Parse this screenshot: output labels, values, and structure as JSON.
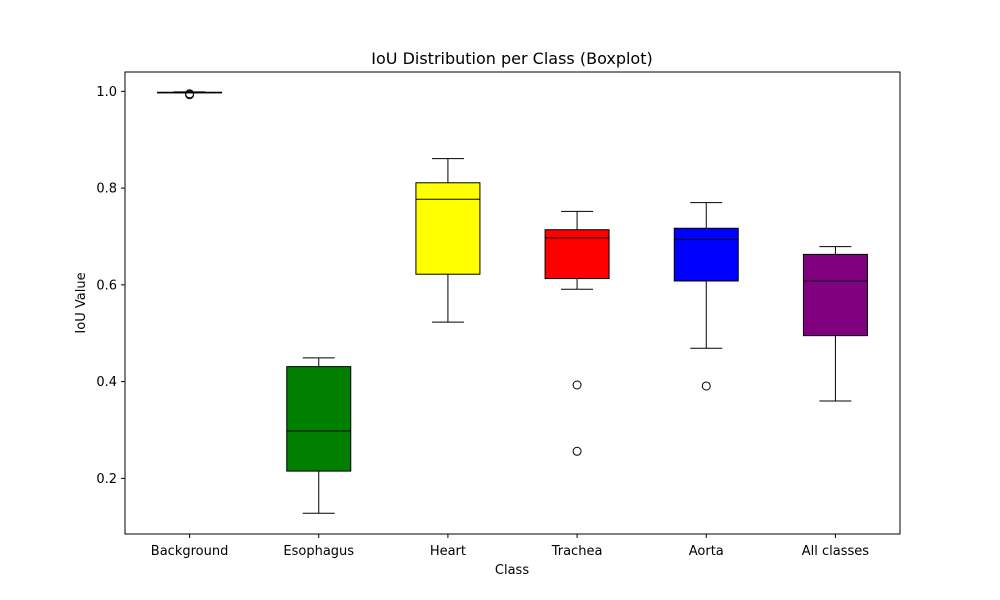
{
  "chart_data": {
    "type": "boxplot",
    "title": "IoU Distribution per Class (Boxplot)",
    "xlabel": "Class",
    "ylabel": "IoU Value",
    "ylim": [
      0.085,
      1.04
    ],
    "yticks": [
      0.2,
      0.4,
      0.6,
      0.8,
      1.0
    ],
    "ytick_labels": [
      "0.2",
      "0.4",
      "0.6",
      "0.8",
      "1.0"
    ],
    "grid": false,
    "legend": "none",
    "boxes": [
      {
        "category": "Background",
        "color": "#ffffff",
        "whisker_low": 0.997,
        "q1": 0.997,
        "median": 0.998,
        "q3": 0.998,
        "whisker_high": 0.999,
        "outliers": [
          0.993,
          0.995
        ]
      },
      {
        "category": "Esophagus",
        "color": "#008000",
        "whisker_low": 0.128,
        "q1": 0.215,
        "median": 0.298,
        "q3": 0.431,
        "whisker_high": 0.449,
        "outliers": []
      },
      {
        "category": "Heart",
        "color": "#ffff00",
        "whisker_low": 0.523,
        "q1": 0.622,
        "median": 0.777,
        "q3": 0.811,
        "whisker_high": 0.861,
        "outliers": []
      },
      {
        "category": "Trachea",
        "color": "#ff0000",
        "whisker_low": 0.591,
        "q1": 0.613,
        "median": 0.697,
        "q3": 0.714,
        "whisker_high": 0.752,
        "outliers": [
          0.393,
          0.256
        ]
      },
      {
        "category": "Aorta",
        "color": "#0000ff",
        "whisker_low": 0.469,
        "q1": 0.608,
        "median": 0.694,
        "q3": 0.717,
        "whisker_high": 0.77,
        "outliers": [
          0.391
        ]
      },
      {
        "category": "All classes",
        "color": "#800080",
        "whisker_low": 0.36,
        "q1": 0.495,
        "median": 0.608,
        "q3": 0.663,
        "whisker_high": 0.679,
        "outliers": []
      }
    ]
  }
}
